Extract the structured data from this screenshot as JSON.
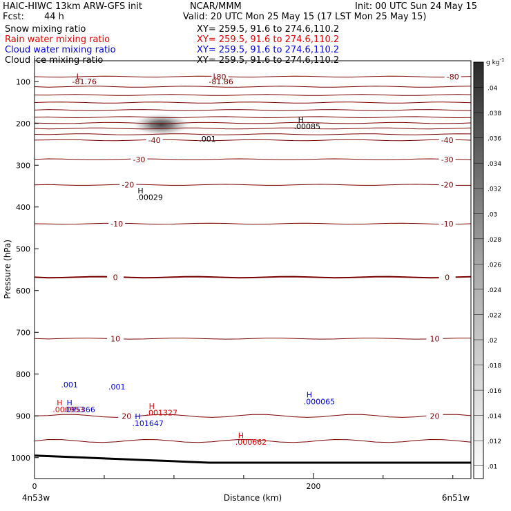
{
  "header": {
    "model": "HAIC-HIWC 13km ARW-GFS init",
    "org": "NCAR/MMM",
    "init": "Init: 00 UTC Sun 24 May 15",
    "fcst_label": "Fcst:",
    "fcst_value": "44 h",
    "valid": "Valid: 20 UTC Mon 25 May 15 (17 LST Mon 25 May 15)"
  },
  "fields": [
    {
      "name": "Snow mixing ratio",
      "xy": "XY= 259.5, 91.6 to 274.6,110.2",
      "color": "#000000"
    },
    {
      "name": "Rain water mixing ratio",
      "xy": "XY= 259.5, 91.6 to 274.6,110.2",
      "color": "#dd0000"
    },
    {
      "name": "Cloud water mixing ratio",
      "xy": "XY= 259.5, 91.6 to 274.6,110.2",
      "color": "#0000dd"
    },
    {
      "name": "Cloud ice mixing ratio",
      "xy": "XY= 259.5, 91.6 to 274.6,110.2",
      "color": "#000000"
    }
  ],
  "chart_data": {
    "type": "contour cross-section",
    "xlabel": "Distance (km)",
    "ylabel": "Pressure (hPa)",
    "x_start_label": "4n53w",
    "x_end_label": "6n51w",
    "xlim": [
      0,
      313
    ],
    "ylim": [
      1050,
      50
    ],
    "x_ticks": [
      0,
      200
    ],
    "x_minor_ticks": [
      50,
      100,
      150,
      250,
      300
    ],
    "y_ticks": [
      100,
      200,
      300,
      400,
      500,
      600,
      700,
      800,
      900,
      1000
    ],
    "colorbar": {
      "unit_label": "g kg",
      "unit_sup": "-1",
      "ticks": [
        ".01",
        ".012",
        ".014",
        ".016",
        ".018",
        ".02",
        ".022",
        ".024",
        ".026",
        ".028",
        ".03",
        ".032",
        ".034",
        ".036",
        ".038",
        ".04"
      ],
      "range": [
        0.009,
        0.042
      ]
    },
    "snow_max": {
      "label": "H",
      "value": ".01025",
      "x": 91,
      "p": 203,
      "spread_km": 22,
      "spread_hpa": 28
    },
    "isotherm_color": "#7a0000",
    "isotherms": [
      {
        "p": 88,
        "label": "-80",
        "lx": [
          133,
          300
        ]
      },
      {
        "p": 112,
        "lx": []
      },
      {
        "p": 132,
        "lx": []
      },
      {
        "p": 150,
        "lx": []
      },
      {
        "p": 168,
        "lx": []
      },
      {
        "p": 185,
        "lx": []
      },
      {
        "p": 199,
        "lx": []
      },
      {
        "p": 212,
        "lx": []
      },
      {
        "p": 226,
        "lx": []
      },
      {
        "p": 240,
        "label": "-40",
        "lx": [
          86,
          296
        ]
      },
      {
        "p": 286,
        "label": "-30",
        "lx": [
          75,
          296
        ]
      },
      {
        "p": 347,
        "label": "-20",
        "lx": [
          67,
          296
        ]
      },
      {
        "p": 440,
        "label": "-10",
        "lx": [
          59,
          296
        ]
      },
      {
        "p": 568,
        "label": "0",
        "lx": [
          58,
          296
        ],
        "bold": true
      },
      {
        "p": 715,
        "label": "10",
        "lx": [
          58,
          287
        ]
      },
      {
        "p": 900,
        "label": "20",
        "lx": [
          66,
          287
        ]
      },
      {
        "p": 960,
        "lx": []
      }
    ],
    "terrain_p_left": 995,
    "terrain_p_right": 1012,
    "labels": [
      {
        "text": "L",
        "x": 30,
        "p": 94,
        "color": "#7a0000"
      },
      {
        "text": "-81.76",
        "x": 27,
        "p": 106,
        "color": "#7a0000"
      },
      {
        "text": "L",
        "x": 128,
        "p": 94,
        "color": "#7a0000"
      },
      {
        "text": "-81.86",
        "x": 125,
        "p": 106,
        "color": "#7a0000"
      },
      {
        "text": ".001",
        "x": 118,
        "p": 243,
        "color": "#000000"
      },
      {
        "text": "H",
        "x": 189,
        "p": 198,
        "color": "#000000"
      },
      {
        "text": ".00085",
        "x": 186,
        "p": 214,
        "color": "#000000"
      },
      {
        "text": "H",
        "x": 74,
        "p": 367,
        "color": "#000000"
      },
      {
        "text": ".00029",
        "x": 73,
        "p": 383,
        "color": "#000000"
      },
      {
        "text": ".001",
        "x": 19,
        "p": 832,
        "color": "#0000dd"
      },
      {
        "text": ".001",
        "x": 53,
        "p": 837,
        "color": "#0000dd"
      },
      {
        "text": "H",
        "x": 16,
        "p": 875,
        "color": "#dd0000"
      },
      {
        "text": ".000953",
        "x": 13,
        "p": 891,
        "color": "#dd0000"
      },
      {
        "text": "H",
        "x": 23,
        "p": 875,
        "color": "#0000dd"
      },
      {
        "text": ".095366",
        "x": 21,
        "p": 891,
        "color": "#0000dd"
      },
      {
        "text": "H",
        "x": 82,
        "p": 883,
        "color": "#dd0000"
      },
      {
        "text": ".001327",
        "x": 80,
        "p": 899,
        "color": "#dd0000"
      },
      {
        "text": "H",
        "x": 72,
        "p": 908,
        "color": "#0000dd"
      },
      {
        "text": ".101647",
        "x": 70,
        "p": 924,
        "color": "#0000dd"
      },
      {
        "text": "H",
        "x": 195,
        "p": 856,
        "color": "#0000dd"
      },
      {
        "text": ".000065",
        "x": 193,
        "p": 872,
        "color": "#0000dd"
      },
      {
        "text": "H",
        "x": 146,
        "p": 953,
        "color": "#dd0000"
      },
      {
        "text": ".000662",
        "x": 144,
        "p": 969,
        "color": "#dd0000"
      }
    ]
  }
}
